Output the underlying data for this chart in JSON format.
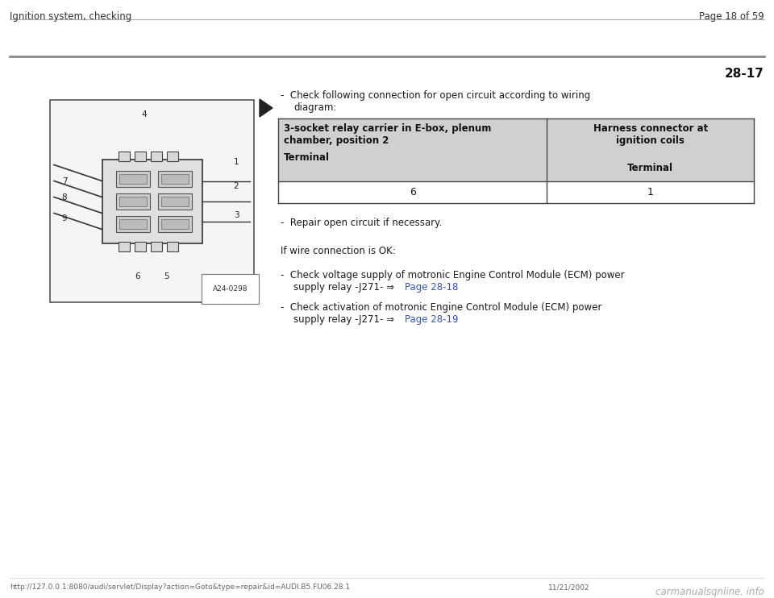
{
  "bg_color": "#ffffff",
  "header_left": "Ignition system, checking",
  "header_right": "Page 18 of 59",
  "section_number": "28-17",
  "table": {
    "col1_header_line1": "3-socket relay carrier in E-box, plenum",
    "col1_header_line2": "chamber, position 2",
    "col1_subheader": "Terminal",
    "col2_header_line1": "Harness connector at",
    "col2_header_line2": "ignition coils",
    "col2_subheader": "Terminal",
    "col1_value": "6",
    "col2_value": "1",
    "header_bg": "#d0d0d0",
    "value_bg": "#ffffff",
    "border_color": "#444444"
  },
  "bullet_repair": "-  Repair open circuit if necessary.",
  "if_wire_ok": "If wire connection is OK:",
  "bullet_check1_line1": "-  Check voltage supply of motronic Engine Control Module (ECM) power",
  "bullet_check1_line2": "supply relay -J271- ⇒ ",
  "bullet_check1_link": "Page 28-18",
  "bullet_check1_dot": " .",
  "bullet_check2_line1": "-  Check activation of motronic Engine Control Module (ECM) power",
  "bullet_check2_line2": "supply relay -J271- ⇒ ",
  "bullet_check2_link": "Page 28-19",
  "bullet_check2_dot": " .",
  "link_color": "#3355bb",
  "footer_url": "http://127.0.0.1:8080/audi/servlet/Display?action=Goto&type=repair&id=AUDI.B5.FU06.28.1",
  "footer_date": "11/21/2002",
  "footer_logo": "carmanualsqnline. info",
  "text_color": "#1a1a1a",
  "diag_label": "A24-0298"
}
